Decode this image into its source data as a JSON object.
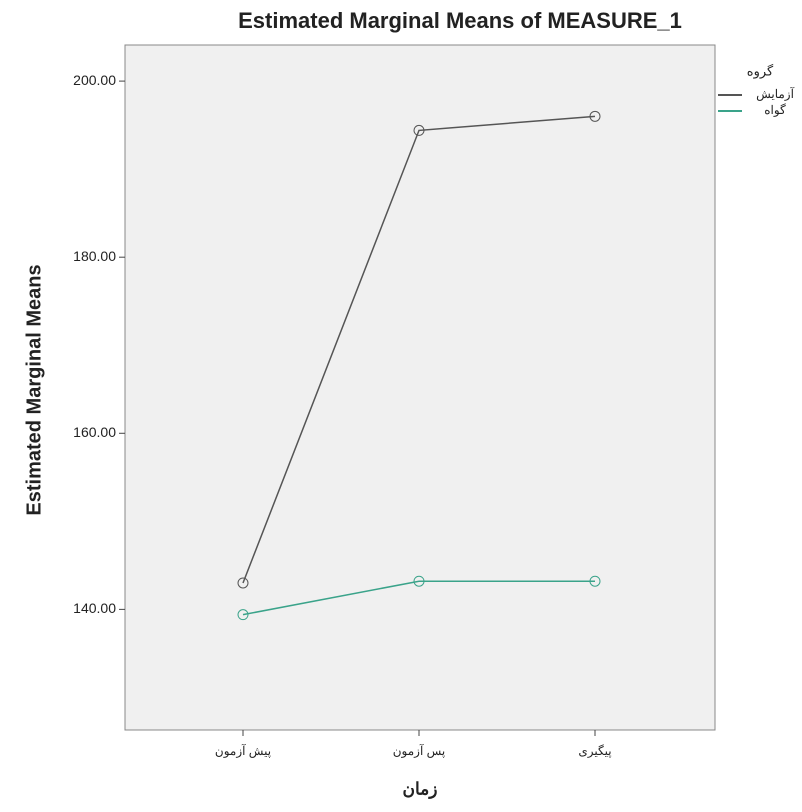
{
  "chart_data": {
    "type": "line",
    "title": "Estimated Marginal Means of MEASURE_1",
    "y_label": "Estimated Marginal Means",
    "x_label": "زمان",
    "legend_title": "گروه",
    "categories": [
      "پیش آزمون",
      "پس آزمون",
      "پیگیری"
    ],
    "series": [
      {
        "name": "آزمایش",
        "color": "#555555",
        "values": [
          143.0,
          194.4,
          196.0
        ]
      },
      {
        "name": "گواه",
        "color": "#3aa38a",
        "values": [
          139.4,
          143.2,
          143.2
        ]
      }
    ],
    "ylim": [
      126.3,
      204.1
    ],
    "yticks": [
      {
        "value": 140,
        "label": "140.00"
      },
      {
        "value": 160,
        "label": "160.00"
      },
      {
        "value": 180,
        "label": "180.00"
      },
      {
        "value": 200,
        "label": "200.00"
      }
    ],
    "legend": "right"
  }
}
